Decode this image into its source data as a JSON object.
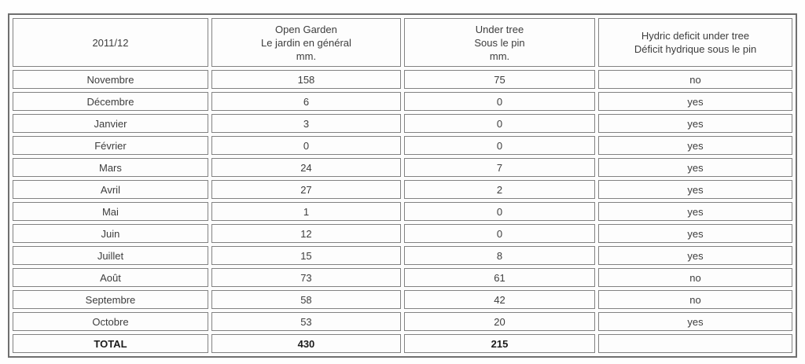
{
  "colors": {
    "table_border": "#6f6f6f",
    "cell_border": "#828282",
    "cell_background": "#fdfdfd",
    "text": "#3d3d3d",
    "total_text": "#1b1b1b"
  },
  "chart_data": {
    "type": "table",
    "title": "2011/12",
    "columns": [
      "2011/12",
      "Open Garden\nLe jardin en général\nmm.",
      "Under tree\nSous le pin\nmm.",
      "Hydric deficit under tree\nDéficit hydrique sous le pin"
    ],
    "rows": [
      {
        "month": "Novembre",
        "open_garden": 158,
        "under_tree": 75,
        "hydric_deficit": "no"
      },
      {
        "month": "Décembre",
        "open_garden": 6,
        "under_tree": 0,
        "hydric_deficit": "yes"
      },
      {
        "month": "Janvier",
        "open_garden": 3,
        "under_tree": 0,
        "hydric_deficit": "yes"
      },
      {
        "month": "Février",
        "open_garden": 0,
        "under_tree": 0,
        "hydric_deficit": "yes"
      },
      {
        "month": "Mars",
        "open_garden": 24,
        "under_tree": 7,
        "hydric_deficit": "yes"
      },
      {
        "month": "Avril",
        "open_garden": 27,
        "under_tree": 2,
        "hydric_deficit": "yes"
      },
      {
        "month": "Mai",
        "open_garden": 1,
        "under_tree": 0,
        "hydric_deficit": "yes"
      },
      {
        "month": "Juin",
        "open_garden": 12,
        "under_tree": 0,
        "hydric_deficit": "yes"
      },
      {
        "month": "Juillet",
        "open_garden": 15,
        "under_tree": 8,
        "hydric_deficit": "yes"
      },
      {
        "month": "Août",
        "open_garden": 73,
        "under_tree": 61,
        "hydric_deficit": "no"
      },
      {
        "month": "Septembre",
        "open_garden": 58,
        "under_tree": 42,
        "hydric_deficit": "no"
      },
      {
        "month": "Octobre",
        "open_garden": 53,
        "under_tree": 20,
        "hydric_deficit": "yes"
      }
    ],
    "total": {
      "label": "TOTAL",
      "open_garden": 430,
      "under_tree": 215,
      "hydric_deficit": ""
    }
  }
}
